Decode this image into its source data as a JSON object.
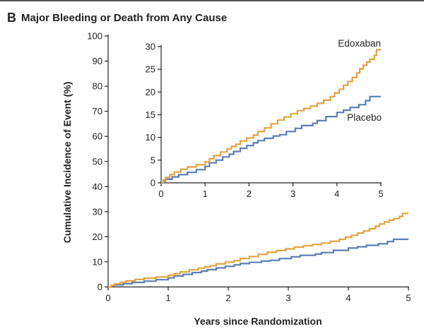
{
  "panel": {
    "letter": "B",
    "title": "Major Bleeding or Death from Any Cause"
  },
  "chart_data": {
    "type": "line",
    "title": "Major Bleeding or Death from Any Cause",
    "xlabel": "Years since Randomization",
    "ylabel": "Cumulative Incidence of Event (%)",
    "xlim": [
      0,
      5
    ],
    "ylim": [
      0,
      100
    ],
    "xticks": [
      "0",
      "1",
      "2",
      "3",
      "4",
      "5"
    ],
    "yticks": [
      "0",
      "10",
      "20",
      "30",
      "40",
      "50",
      "60",
      "70",
      "80",
      "90",
      "100"
    ],
    "grid": false,
    "colors": {
      "Edoxaban": "#e3a240",
      "Placebo": "#5b7db5"
    },
    "series": [
      {
        "name": "Edoxaban",
        "x": [
          0,
          0.05,
          0.1,
          0.2,
          0.3,
          0.45,
          0.6,
          0.8,
          1.0,
          1.1,
          1.2,
          1.35,
          1.5,
          1.6,
          1.7,
          1.8,
          1.95,
          2.1,
          2.2,
          2.35,
          2.5,
          2.65,
          2.8,
          2.95,
          3.1,
          3.25,
          3.4,
          3.55,
          3.7,
          3.85,
          3.95,
          4.05,
          4.15,
          4.25,
          4.35,
          4.45,
          4.52,
          4.6,
          4.68,
          4.75,
          4.85,
          4.9,
          5.0
        ],
        "values": [
          0,
          0.6,
          1.2,
          1.8,
          2.4,
          3.0,
          3.5,
          4.0,
          4.6,
          5.3,
          6.0,
          6.8,
          7.5,
          8.0,
          8.5,
          9.2,
          9.9,
          10.5,
          11.3,
          12.1,
          13.0,
          13.8,
          14.5,
          15.2,
          15.9,
          16.4,
          16.9,
          17.5,
          18.2,
          19.0,
          19.8,
          20.6,
          21.5,
          22.3,
          23.2,
          24.2,
          25.1,
          25.9,
          26.6,
          27.2,
          28.1,
          29.3,
          29.3
        ]
      },
      {
        "name": "Placebo",
        "x": [
          0,
          0.05,
          0.1,
          0.25,
          0.4,
          0.6,
          0.8,
          1.0,
          1.1,
          1.25,
          1.4,
          1.55,
          1.65,
          1.8,
          1.95,
          2.1,
          2.2,
          2.35,
          2.55,
          2.7,
          2.85,
          3.05,
          3.2,
          3.45,
          3.55,
          3.75,
          4.0,
          4.15,
          4.3,
          4.5,
          4.65,
          4.75,
          5.0
        ],
        "values": [
          0,
          0.4,
          0.8,
          1.3,
          1.8,
          2.3,
          2.9,
          3.6,
          4.4,
          5.0,
          5.7,
          6.3,
          6.9,
          7.6,
          8.2,
          8.8,
          9.3,
          9.8,
          10.3,
          10.6,
          11.3,
          12.0,
          12.6,
          13.1,
          13.7,
          14.6,
          15.5,
          16.0,
          16.6,
          17.2,
          18.1,
          19.0,
          19.0
        ]
      }
    ],
    "inset": {
      "xlim": [
        0,
        5
      ],
      "ylim": [
        0,
        30
      ],
      "xticks": [
        "0",
        "1",
        "2",
        "3",
        "4",
        "5"
      ],
      "yticks": [
        "0",
        "5",
        "10",
        "15",
        "20",
        "25",
        "30"
      ]
    }
  }
}
